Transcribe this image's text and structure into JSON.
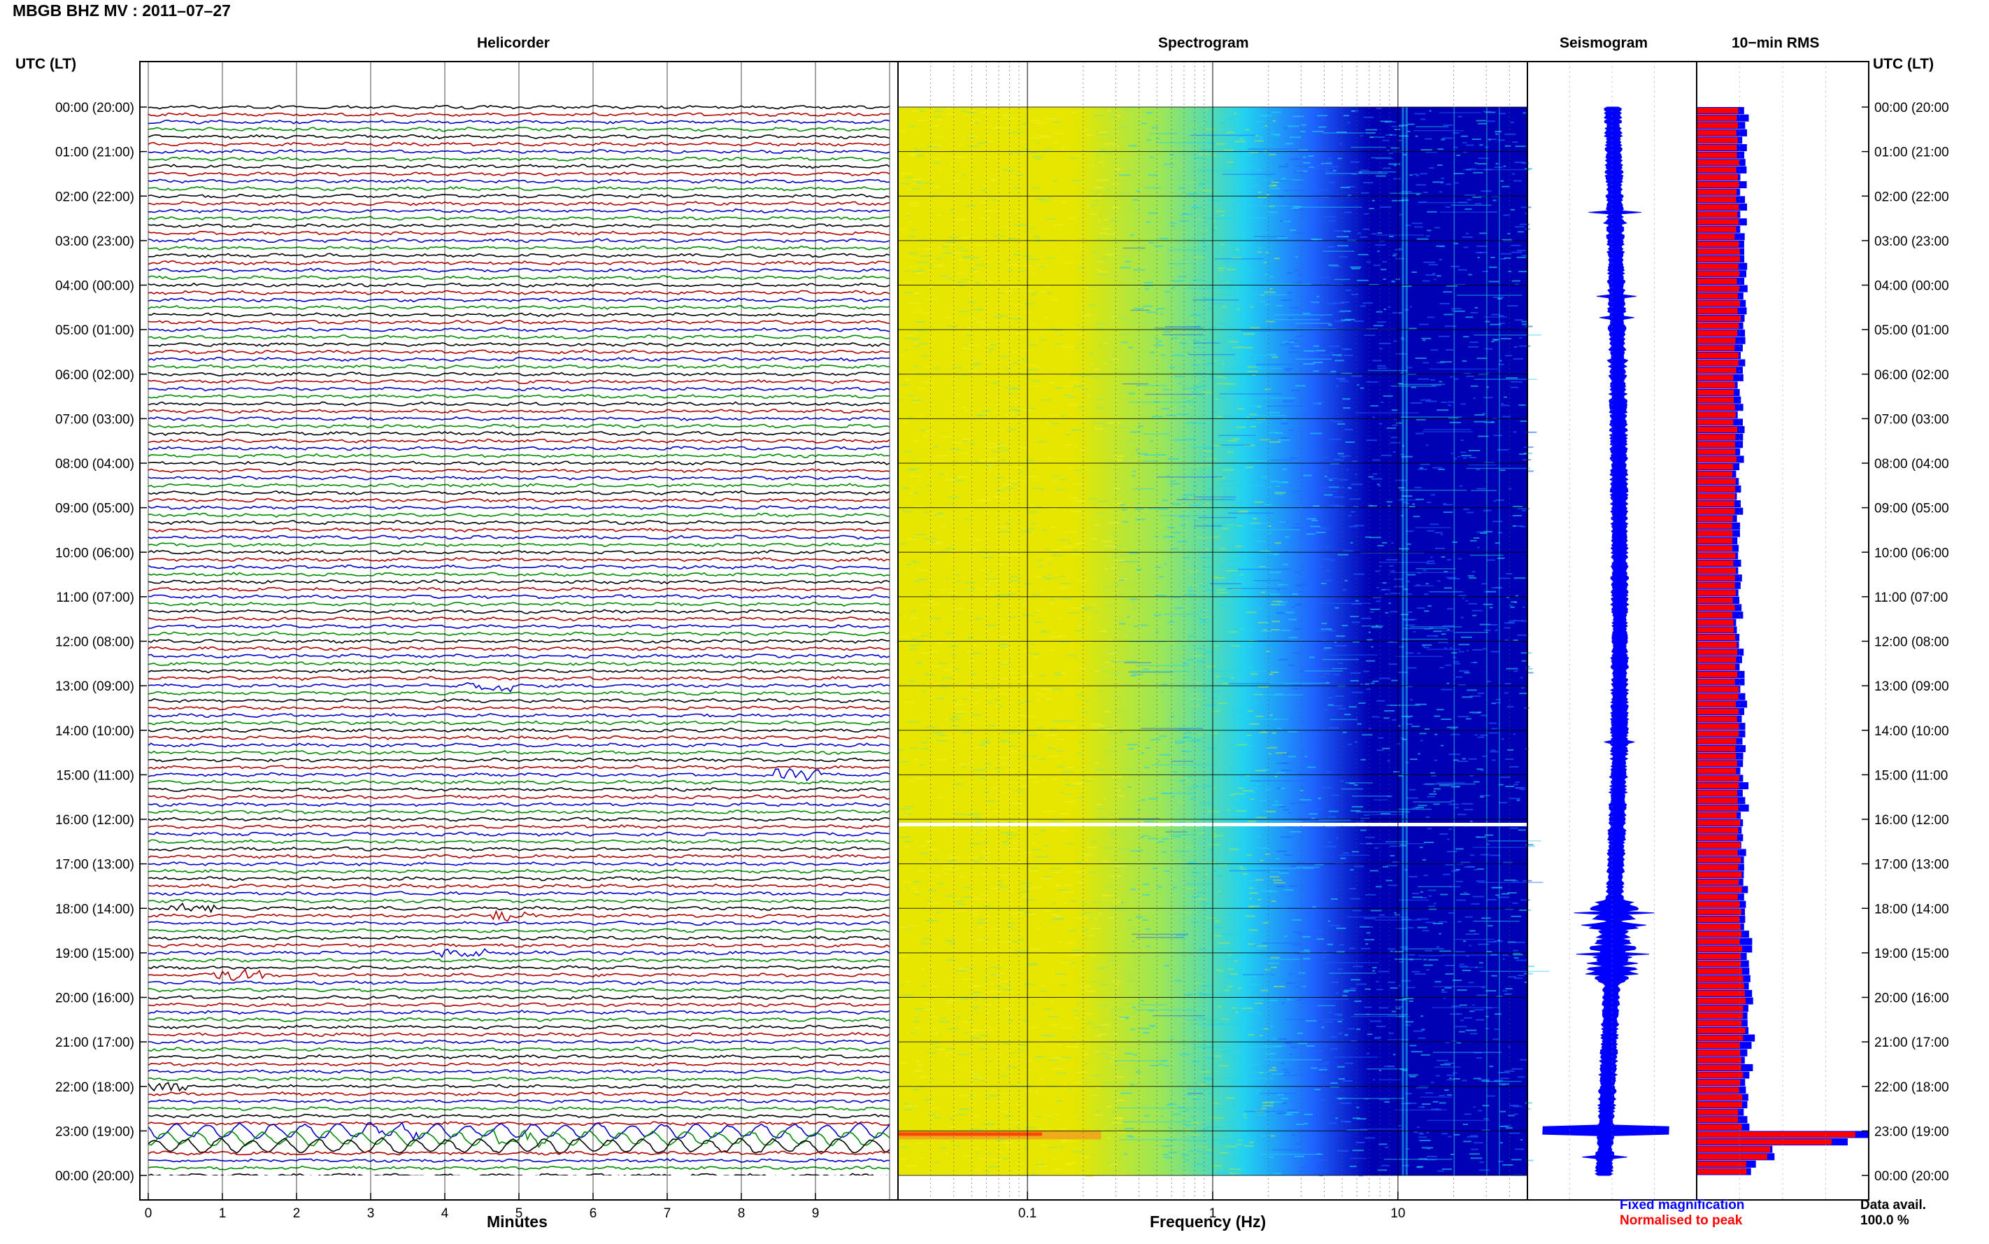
{
  "header": {
    "title": "MBGB BHZ MV : 2011–07–27",
    "time_axis_label": "UTC (LT)"
  },
  "panels": {
    "helicorder": "Helicorder",
    "spectrogram": "Spectrogram",
    "seismogram": "Seismogram",
    "rms": "10−min RMS"
  },
  "time_labels": [
    "00:00 (20:00)",
    "01:00 (21:00)",
    "02:00 (22:00)",
    "03:00 (23:00)",
    "04:00 (00:00)",
    "05:00 (01:00)",
    "06:00 (02:00)",
    "07:00 (03:00)",
    "08:00 (04:00)",
    "09:00 (05:00)",
    "10:00 (06:00)",
    "11:00 (07:00)",
    "12:00 (08:00)",
    "13:00 (09:00)",
    "14:00 (10:00)",
    "15:00 (11:00)",
    "16:00 (12:00)",
    "17:00 (13:00)",
    "18:00 (14:00)",
    "19:00 (15:00)",
    "20:00 (16:00)",
    "21:00 (17:00)",
    "22:00 (18:00)",
    "23:00 (19:00)",
    "00:00 (20:00)"
  ],
  "footer": {
    "fixed_magnification": "Fixed magnification",
    "normalised_to_peak": "Normalised to peak",
    "data_avail_label": "Data avail.",
    "data_avail_value": "100.0 %"
  },
  "colors": {
    "trace_cycle": [
      "#000000",
      "#b00000",
      "#0000c8",
      "#008c00"
    ],
    "fixed_magnification": "#0000ff",
    "normalised_to_peak": "#ff0000"
  },
  "chart_data": [
    {
      "type": "line",
      "name": "helicorder",
      "title": "Helicorder",
      "xlabel": "Minutes",
      "x_ticks": [
        0,
        1,
        2,
        3,
        4,
        5,
        6,
        7,
        8,
        9
      ],
      "xlim": [
        0,
        10
      ],
      "rows_per_hour": 6,
      "rows": 144,
      "events": [
        {
          "time": "13:00",
          "minute": 4.6
        },
        {
          "time": "15:00",
          "minute": 8.8
        },
        {
          "time": "18:00",
          "minute": 0.6
        },
        {
          "time": "18:10",
          "minute": 5.0
        },
        {
          "time": "19:00",
          "minute": 4.2
        },
        {
          "time": "19:30",
          "minute": 1.2
        },
        {
          "time": "22:00",
          "minute": 0.2
        },
        {
          "time": "23:00",
          "minute": 3.3
        },
        {
          "time": "23:10",
          "minute": 5.0
        }
      ]
    },
    {
      "type": "heatmap",
      "name": "spectrogram",
      "title": "Spectrogram",
      "xlabel": "Frequency (Hz)",
      "x_scale": "log",
      "x_ticks": [
        0.1,
        1,
        10
      ],
      "x_tick_labels": [
        "0.1",
        "1",
        "10"
      ],
      "xlim": [
        0.02,
        50
      ],
      "y": "time of day (UTC), 00:00 to 24:00",
      "colormap": [
        "#e6e600",
        "#9ae65a",
        "#22d2f0",
        "#1e64ff",
        "#0000b4"
      ],
      "data_gap": "16:00"
    },
    {
      "type": "line",
      "name": "seismogram",
      "title": "Seismogram",
      "color": "#0000ff"
    },
    {
      "type": "bar",
      "name": "10-min RMS",
      "title": "10−min RMS",
      "series": [
        {
          "name": "Fixed magnification",
          "color": "#0000ff"
        },
        {
          "name": "Normalised to peak",
          "color": "#ff0000"
        }
      ],
      "normalised_hourly": [
        0.27,
        0.26,
        0.26,
        0.27,
        0.27,
        0.26,
        0.25,
        0.25,
        0.24,
        0.24,
        0.24,
        0.24,
        0.25,
        0.26,
        0.26,
        0.27,
        0.27,
        0.28,
        0.29,
        0.3,
        0.3,
        0.29,
        0.28,
        0.8
      ],
      "peak_time": "23:00"
    }
  ]
}
